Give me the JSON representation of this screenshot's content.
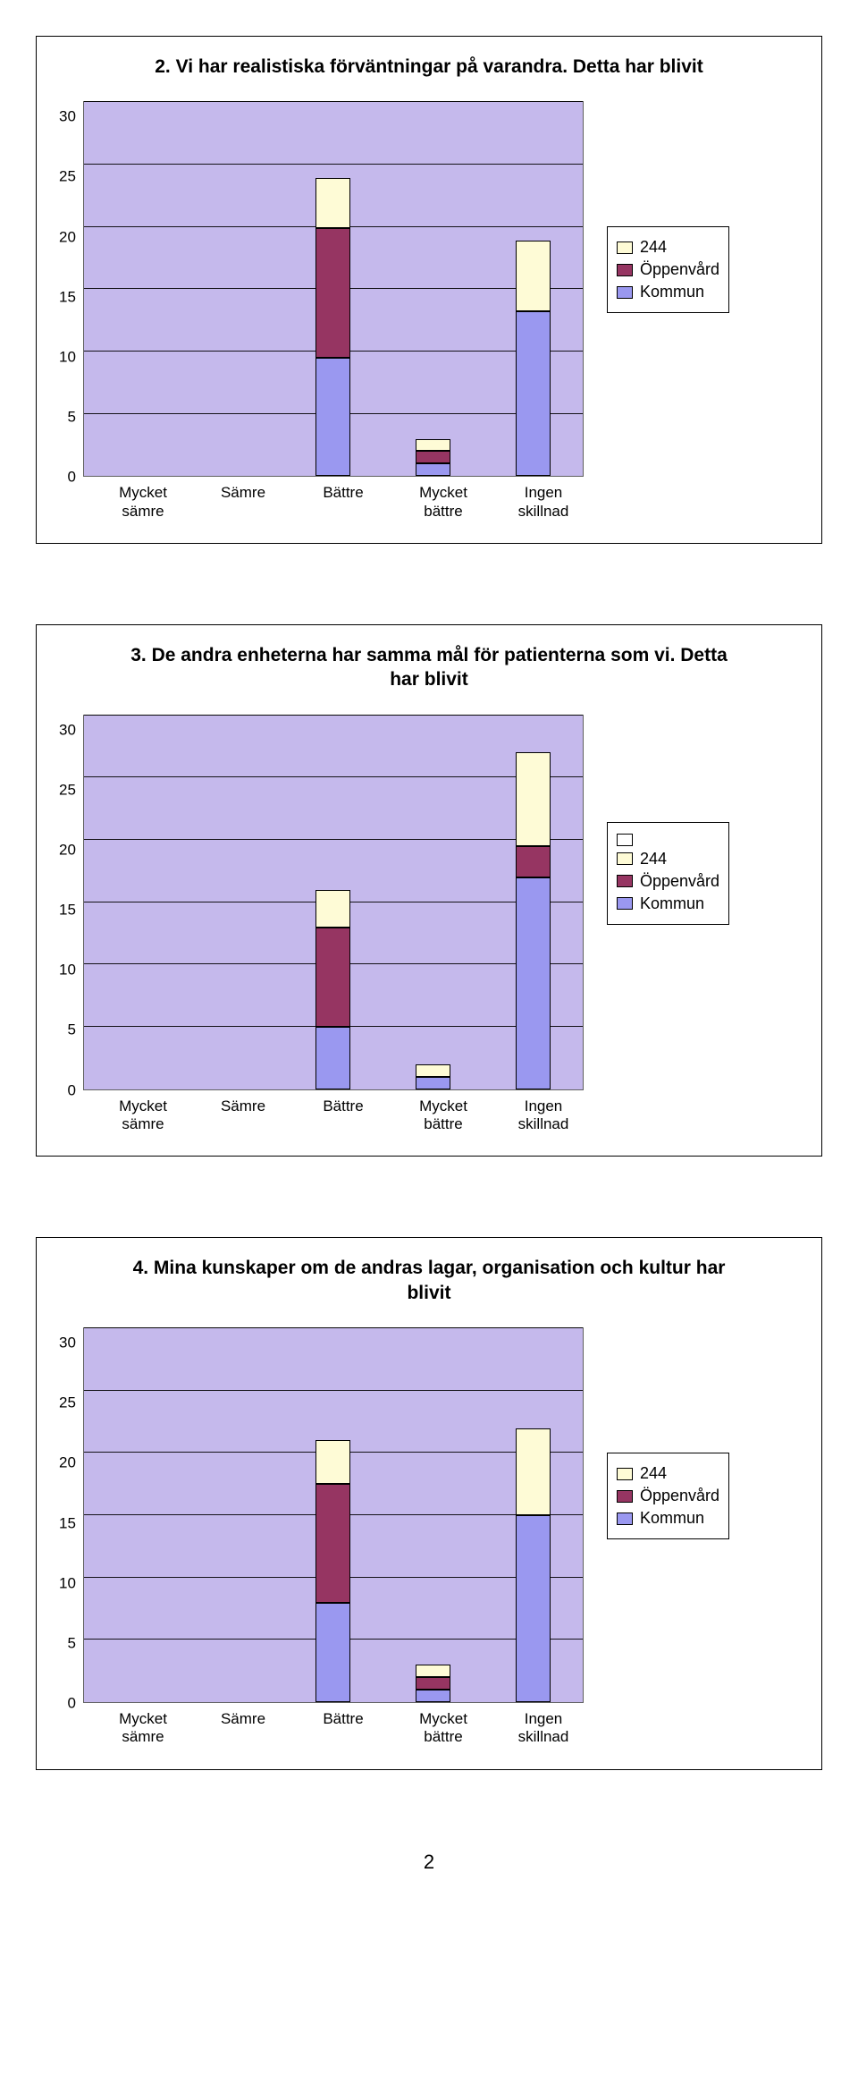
{
  "colors": {
    "plot_bg": "#c5b9ec",
    "grid": "#000000",
    "series_244": "#fefbd6",
    "series_oppenvard": "#963562",
    "series_kommun": "#9a98f0",
    "border": "#000000"
  },
  "legend": {
    "items": [
      {
        "label": "244",
        "color_key": "series_244"
      },
      {
        "label": "Öppenvård",
        "color_key": "series_oppenvard"
      },
      {
        "label": "Kommun",
        "color_key": "series_kommun"
      }
    ]
  },
  "charts": [
    {
      "title": "2. Vi har realistiska förväntningar på varandra. Detta har blivit",
      "axis": {
        "max": 30,
        "ticks": [
          30,
          25,
          20,
          15,
          10,
          5,
          0
        ]
      },
      "categories": [
        "Mycket sämre",
        "Sämre",
        "Bättre",
        "Mycket bättre",
        "Ingen skillnad"
      ],
      "bars": [
        [
          0,
          0,
          0
        ],
        [
          0,
          0,
          0
        ],
        [
          9.5,
          10.4,
          4.0
        ],
        [
          1.0,
          1.0,
          1.0
        ],
        [
          13.2,
          0,
          5.7
        ]
      ],
      "legend_extra_blank": false,
      "legend_side": "right"
    },
    {
      "title": "3. De andra enheterna har samma mål för patienterna som vi. Detta har blivit",
      "axis": {
        "max": 30,
        "ticks": [
          30,
          25,
          20,
          15,
          10,
          5,
          0
        ]
      },
      "categories": [
        "Mycket sämre",
        "Sämre",
        "Bättre",
        "Mycket bättre",
        "Ingen skillnad"
      ],
      "bars": [
        [
          0,
          0,
          0
        ],
        [
          0,
          0,
          0
        ],
        [
          5.0,
          8.0,
          3.0
        ],
        [
          1.0,
          0,
          1.0
        ],
        [
          17.0,
          2.5,
          7.5
        ]
      ],
      "legend_extra_blank": true,
      "legend_side": "right"
    },
    {
      "title": "4. Mina kunskaper om de andras lagar, organisation och kultur har blivit",
      "axis": {
        "max": 30,
        "ticks": [
          30,
          25,
          20,
          15,
          10,
          5,
          0
        ]
      },
      "categories": [
        "Mycket sämre",
        "Sämre",
        "Bättre",
        "Mycket bättre",
        "Ingen skillnad"
      ],
      "bars": [
        [
          0,
          0,
          0
        ],
        [
          0,
          0,
          0
        ],
        [
          8.0,
          9.5,
          3.5
        ],
        [
          1.0,
          1.0,
          1.0
        ],
        [
          15.0,
          0,
          7.0
        ]
      ],
      "legend_extra_blank": false,
      "legend_side": "right"
    }
  ],
  "page_number": "2"
}
